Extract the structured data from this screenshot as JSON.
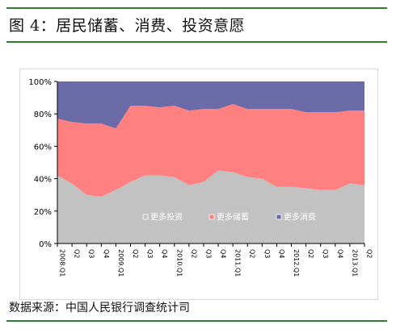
{
  "figure": {
    "title": "图 4：居民储蓄、消费、投资意愿",
    "source": "数据来源：中国人民银行调查统计司"
  },
  "colors": {
    "invest": "#c2c2c2",
    "save": "#ff8080",
    "consume": "#6b6ba8",
    "rule": "#2e7d32"
  },
  "chart_data": {
    "type": "area",
    "stacked": true,
    "title": "",
    "xlabel": "",
    "ylabel": "",
    "ylim": [
      0,
      100
    ],
    "yticks": [
      "0%",
      "20%",
      "40%",
      "60%",
      "80%",
      "100%"
    ],
    "grid": false,
    "legend_position": "bottom-right-inside",
    "categories": [
      "2008.Q1",
      "Q2",
      "Q3",
      "Q4",
      "2009.Q1",
      "Q2",
      "Q3",
      "Q4",
      "2010.Q1",
      "Q2",
      "Q3",
      "Q4",
      "2011.Q1",
      "Q2",
      "Q3",
      "Q4",
      "2012.Q1",
      "Q2",
      "Q3",
      "Q4",
      "2013.Q1",
      "Q2"
    ],
    "x_tick_labels": [
      "2008.Q1",
      "Q2",
      "Q3",
      "Q4",
      "2009.Q1",
      "Q2",
      "Q3",
      "Q4",
      "2010.Q1",
      "Q2",
      "Q3",
      "Q4",
      "2011.Q1",
      "Q2",
      "Q3",
      "Q4",
      "2012.Q1",
      "Q2",
      "Q3",
      "Q4",
      "2013.Q1",
      "Q2"
    ],
    "series": [
      {
        "name": "更多投资",
        "color": "#c2c2c2",
        "values": [
          42,
          37,
          30,
          29,
          33,
          38,
          42,
          42,
          41,
          36,
          38,
          45,
          44,
          41,
          40,
          35,
          35,
          34,
          33,
          33,
          37,
          36
        ]
      },
      {
        "name": "更多储蓄",
        "color": "#ff8080",
        "values": [
          35,
          38,
          44,
          45,
          38,
          47,
          43,
          42,
          44,
          46,
          45,
          38,
          42,
          42,
          43,
          48,
          48,
          47,
          48,
          48,
          45,
          46
        ]
      },
      {
        "name": "更多消费",
        "color": "#6b6ba8",
        "values": [
          23,
          25,
          26,
          26,
          29,
          15,
          15,
          16,
          15,
          18,
          17,
          17,
          14,
          17,
          17,
          17,
          17,
          19,
          19,
          19,
          18,
          18
        ]
      }
    ]
  }
}
